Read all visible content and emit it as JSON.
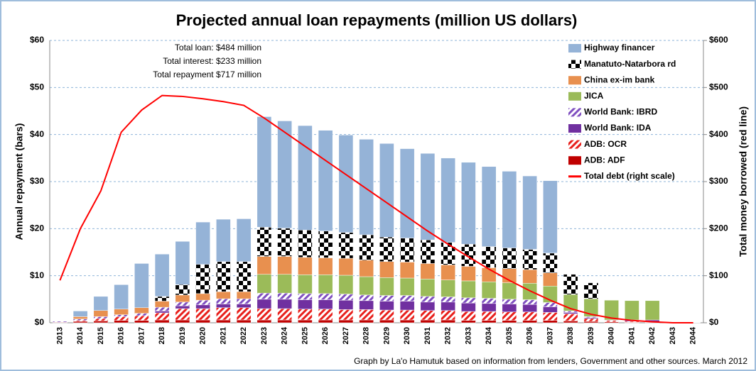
{
  "chart_data": {
    "type": "bar",
    "title": "Projected annual loan repayments (million US dollars)",
    "annotations": [
      "Total loan: $484 million",
      "Total interest: $233 million",
      "Total repayment $717 million"
    ],
    "footer": "Graph by La'o Hamutuk based on information from lenders, Government and other sources.  March 2012",
    "y_label": "Annual repayment (bars)",
    "y2_label": "Total money borrowed (red line)",
    "categories": [
      "2013",
      "2014",
      "2015",
      "2016",
      "2017",
      "2018",
      "2019",
      "2020",
      "2021",
      "2022",
      "2023",
      "2024",
      "2025",
      "2026",
      "2027",
      "2028",
      "2029",
      "2030",
      "2031",
      "2032",
      "2033",
      "2034",
      "2035",
      "2036",
      "2037",
      "2038",
      "2039",
      "2040",
      "2041",
      "2042",
      "2043",
      "2044"
    ],
    "stacked": true,
    "grid": true,
    "legend": "top-right",
    "series": [
      {
        "name": "ADB: ADF",
        "color": "#c00000",
        "pattern": "solid",
        "values": [
          0.1,
          0.3,
          0.4,
          0.5,
          0.5,
          0.6,
          0.6,
          0.6,
          0.6,
          0.6,
          0.6,
          0.6,
          0.6,
          0.6,
          0.6,
          0.6,
          0.6,
          0.6,
          0.6,
          0.6,
          0.5,
          0.5,
          0.5,
          0.5,
          0.5,
          0.4,
          0.3,
          0.2,
          0.1,
          0.1,
          0,
          0
        ]
      },
      {
        "name": "ADB: OCR",
        "color": "#e8201c",
        "pattern": "hatch",
        "values": [
          0,
          0.2,
          0.5,
          0.8,
          1.0,
          1.5,
          2.4,
          2.4,
          2.6,
          2.6,
          2.4,
          2.4,
          2.3,
          2.3,
          2.2,
          2.2,
          2.1,
          2.1,
          2.0,
          2.0,
          1.9,
          1.9,
          1.8,
          1.8,
          1.7,
          1.5,
          0.6,
          0.3,
          0.2,
          0.1,
          0,
          0
        ]
      },
      {
        "name": "World Bank: IDA",
        "color": "#7030a0",
        "pattern": "solid",
        "values": [
          0,
          0,
          0,
          0,
          0,
          0.4,
          0.6,
          0.8,
          0.8,
          0.8,
          2.0,
          2.0,
          2.0,
          2.0,
          2.0,
          1.9,
          1.9,
          1.9,
          1.8,
          1.8,
          1.8,
          1.7,
          1.7,
          1.6,
          1.2,
          0.3,
          0.2,
          0.1,
          0.3,
          0.4,
          0.1,
          0.05
        ]
      },
      {
        "name": "World Bank: IBRD",
        "color": "#7f4fc0",
        "pattern": "hatch",
        "values": [
          0.2,
          0.3,
          0.4,
          0.4,
          0.5,
          0.8,
          0.8,
          1.0,
          1.1,
          1.1,
          1.3,
          1.3,
          1.3,
          1.3,
          1.3,
          1.2,
          1.2,
          1.2,
          1.2,
          1.1,
          1.1,
          1.1,
          1.0,
          1.0,
          0.9,
          0.3,
          0.2,
          0,
          0,
          0,
          0,
          0
        ]
      },
      {
        "name": "JICA",
        "color": "#9bbb59",
        "pattern": "solid",
        "values": [
          0,
          0,
          0,
          0,
          0,
          0,
          0,
          0,
          0,
          0,
          4.0,
          4.0,
          4.0,
          4.0,
          4.0,
          3.9,
          3.8,
          3.7,
          3.7,
          3.6,
          3.6,
          3.5,
          3.5,
          3.5,
          3.5,
          3.5,
          3.8,
          4.2,
          4.1,
          4.1,
          0,
          0
        ]
      },
      {
        "name": "China ex-im bank",
        "color": "#e8904f",
        "pattern": "solid",
        "values": [
          0,
          0.5,
          1.3,
          1.2,
          1.2,
          1.3,
          1.5,
          1.4,
          1.5,
          1.5,
          3.8,
          3.8,
          3.7,
          3.6,
          3.6,
          3.5,
          3.4,
          3.4,
          3.3,
          3.2,
          3.1,
          3.0,
          3.0,
          2.9,
          2.8,
          0,
          0,
          0,
          0,
          0,
          0,
          0
        ]
      },
      {
        "name": "Manatuto-Natarbora rd",
        "color": "#000000",
        "pattern": "checker",
        "values": [
          0,
          0,
          0,
          0,
          0,
          1.0,
          2.2,
          6.2,
          6.4,
          6.4,
          6.2,
          6.0,
          5.8,
          5.7,
          5.5,
          5.4,
          5.2,
          5.1,
          5.0,
          4.8,
          4.7,
          4.5,
          4.4,
          4.3,
          4.2,
          4.3,
          3.4,
          0,
          0,
          0,
          0,
          0
        ]
      },
      {
        "name": "Highway financer",
        "color": "#95b3d7",
        "pattern": "solid",
        "values": [
          0,
          1.2,
          3.0,
          5.2,
          9.4,
          9.0,
          9.2,
          9.0,
          9.0,
          9.1,
          23.5,
          22.8,
          22.2,
          21.4,
          20.7,
          20.3,
          19.9,
          19.0,
          18.4,
          17.9,
          17.4,
          17.0,
          16.3,
          15.6,
          15.4,
          0,
          0,
          0,
          0,
          0,
          0,
          0
        ]
      },
      {
        "name": "Total debt (right scale)",
        "color": "#ff0000",
        "type": "line",
        "axis": "y2",
        "values": [
          90,
          200,
          280,
          405,
          452,
          483,
          481,
          476,
          470,
          462,
          435,
          405,
          375,
          345,
          315,
          285,
          255,
          225,
          195,
          167,
          140,
          114,
          90,
          68,
          48,
          30,
          18,
          10,
          5,
          2,
          0,
          0
        ]
      }
    ],
    "ylim": [
      0,
      60
    ],
    "yticks": [
      {
        "value": 0,
        "label": "$0"
      },
      {
        "value": 10,
        "label": "$10"
      },
      {
        "value": 20,
        "label": "$20"
      },
      {
        "value": 30,
        "label": "$30"
      },
      {
        "value": 40,
        "label": "$40"
      },
      {
        "value": 50,
        "label": "$50"
      },
      {
        "value": 60,
        "label": "$60"
      }
    ],
    "y2lim": [
      0,
      600
    ],
    "y2ticks": [
      {
        "value": 0,
        "label": "$0"
      },
      {
        "value": 100,
        "label": "$100"
      },
      {
        "value": 200,
        "label": "$200"
      },
      {
        "value": 300,
        "label": "$300"
      },
      {
        "value": 400,
        "label": "$400"
      },
      {
        "value": 500,
        "label": "$500"
      },
      {
        "value": 600,
        "label": "$600"
      }
    ]
  }
}
